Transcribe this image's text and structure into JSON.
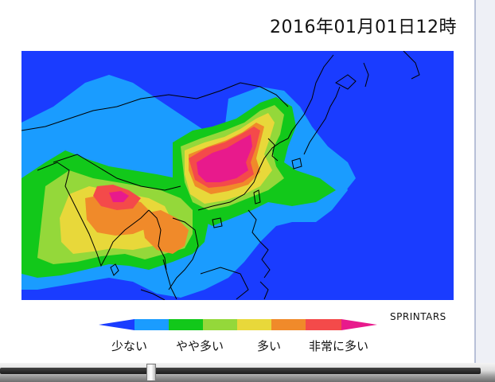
{
  "header": {
    "timestamp": "2016年01月01日12時"
  },
  "map": {
    "region": "East and South Asia aerosol forecast",
    "ocean_color": "#1a3cff",
    "coastline_color": "#000000"
  },
  "credit": "SPRINTARS",
  "legend": {
    "colors": [
      "#1a3cff",
      "#1a9cff",
      "#12c81a",
      "#94d83a",
      "#e8d83a",
      "#f08a2a",
      "#f44a4a",
      "#e81a8c"
    ],
    "labels": [
      "少ない",
      "やや多い",
      "多い",
      "非常に多い"
    ]
  },
  "scrollbar": {
    "position": 0.31
  }
}
